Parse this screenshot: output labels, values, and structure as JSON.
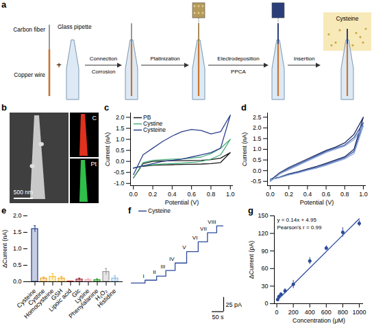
{
  "panel_a": {
    "letter": "a",
    "labels": {
      "carbon_fiber": "Carbon fiber",
      "copper_wire": "Copper wire",
      "plus": "+",
      "glass_pipette": "Glass pipette",
      "steps": [
        {
          "above": "Connection",
          "below": "Corrosion"
        },
        {
          "above": "Platinization"
        },
        {
          "above": "Electrodeposition",
          "below": "PPCA"
        },
        {
          "above": "Insertion"
        }
      ],
      "analyte": "Cysteine"
    }
  },
  "panel_b": {
    "letter": "b",
    "scale_bar": "500 nm",
    "maps": [
      "C",
      "Pt"
    ]
  },
  "chart_data": [
    {
      "panel": "c",
      "type": "line",
      "legend": "top-left",
      "x_label": "Potential (V)",
      "y_label": "Current (nA)",
      "x": [
        0,
        0.1,
        0.2,
        0.3,
        0.4,
        0.5,
        0.6,
        0.7,
        0.8,
        0.9,
        1,
        0.9,
        0.8,
        0.7,
        0.6,
        0.5,
        0.4,
        0.3,
        0.2,
        0.1,
        0
      ],
      "xlim": [
        -0.03,
        1.03
      ],
      "xticks": [
        {
          "value": 0,
          "label": "0.0"
        },
        0.2,
        0.4,
        0.6,
        0.8,
        {
          "value": 1,
          "label": "1.0"
        }
      ],
      "ylim": [
        -1.1,
        2.2
      ],
      "yticks": [
        {
          "value": -1,
          "label": "-1.0"
        },
        -0.5,
        {
          "value": 0,
          "label": "0.0"
        },
        0.5,
        {
          "value": 1,
          "label": "1.0"
        },
        1.5,
        {
          "value": 2,
          "label": "2.0"
        }
      ],
      "series": [
        {
          "name": "PB",
          "color": "#1a1a1a",
          "values": [
            -0.75,
            -0.1,
            0,
            0.02,
            0.03,
            0.03,
            0.04,
            0.05,
            0.08,
            0.15,
            0.4,
            -0.05,
            -0.1,
            -0.12,
            -0.13,
            -0.14,
            -0.15,
            -0.16,
            -0.18,
            -0.22,
            -0.3
          ]
        },
        {
          "name": "Cystine",
          "color": "#4caf7d",
          "values": [
            -0.75,
            -0.05,
            0.05,
            0.08,
            0.1,
            0.12,
            0.15,
            0.2,
            0.35,
            0.6,
            1.0,
            0.3,
            0.1,
            0,
            -0.05,
            -0.08,
            -0.1,
            -0.12,
            -0.15,
            -0.2,
            -0.3
          ]
        },
        {
          "name": "Cysteine",
          "color": "#2b3f8c",
          "values": [
            -0.6,
            0.3,
            0.6,
            0.9,
            1.15,
            1.35,
            1.45,
            1.4,
            1.25,
            1.35,
            2.1,
            0.6,
            0.4,
            0.3,
            0.2,
            0.1,
            0.05,
            0,
            -0.1,
            -0.2,
            -0.3
          ]
        }
      ]
    },
    {
      "panel": "d",
      "type": "line",
      "x_label": "Potential (V)",
      "y_label": "Current (nA)",
      "x": [
        0,
        0.1,
        0.2,
        0.3,
        0.4,
        0.5,
        0.6,
        0.7,
        0.8,
        0.9,
        1,
        0.9,
        0.8,
        0.7,
        0.6,
        0.5,
        0.4,
        0.3,
        0.2,
        0.1,
        0
      ],
      "xlim": [
        -0.03,
        1.03
      ],
      "xticks": [
        {
          "value": 0,
          "label": "0.0"
        },
        0.2,
        0.4,
        0.6,
        0.8,
        {
          "value": 1,
          "label": "1.0"
        }
      ],
      "ylim": [
        -0.7,
        2.7
      ],
      "yticks": [
        -0.5,
        {
          "value": 0,
          "label": "0.0"
        },
        0.5,
        {
          "value": 1,
          "label": "1.0"
        },
        1.5,
        {
          "value": 2,
          "label": "2.0"
        },
        2.5
      ],
      "series": [
        {
          "color": "#1c2a5e",
          "values": [
            -0.45,
            -0.1,
            0.15,
            0.35,
            0.55,
            0.75,
            0.95,
            1.1,
            1.3,
            1.7,
            2.5,
            1.0,
            0.65,
            0.5,
            0.35,
            0.2,
            0.08,
            -0.05,
            -0.15,
            -0.3,
            -0.4
          ]
        },
        {
          "color": "#3d5aa8",
          "values": [
            -0.5,
            -0.15,
            0.1,
            0.3,
            0.5,
            0.7,
            0.9,
            1.05,
            1.2,
            1.55,
            2.25,
            0.9,
            0.6,
            0.45,
            0.3,
            0.15,
            0.05,
            -0.08,
            -0.18,
            -0.32,
            -0.42
          ]
        },
        {
          "color": "#8aa6d8",
          "values": [
            -0.5,
            -0.15,
            0.05,
            0.25,
            0.45,
            0.65,
            0.85,
            1.0,
            1.15,
            1.45,
            2.1,
            0.8,
            0.55,
            0.4,
            0.25,
            0.12,
            0.02,
            -0.1,
            -0.2,
            -0.33,
            -0.42
          ]
        }
      ]
    },
    {
      "panel": "e",
      "type": "bar",
      "y_label": "ΔCurrent (nA)",
      "categories": [
        "Cysteine",
        "Cystine",
        "Homocysteine",
        "GSH",
        "Lipoic acid",
        "Glc",
        "Lysine",
        "Phenylalanine",
        "H₂O₂",
        "Histidine"
      ],
      "values": [
        1.6,
        0.1,
        0.15,
        0.1,
        0.01,
        0.07,
        0.05,
        0.05,
        0.3,
        0.1
      ],
      "errors": [
        0.1,
        0.04,
        0.1,
        0.06,
        0.01,
        0.04,
        0.04,
        0.04,
        0.1,
        0.08
      ],
      "colors": [
        "#1f3c88",
        "#f0a030",
        "#f2c230",
        "#f5a623",
        "#d62728",
        "#9b2335",
        "#f4a6b0",
        "#2ca02c",
        "#999999",
        "#8ab8e6"
      ],
      "ylim": [
        0,
        2
      ],
      "yticks": [
        {
          "value": 0,
          "label": "0.0"
        },
        0.5,
        {
          "value": 1,
          "label": "1.0"
        },
        1.5,
        {
          "value": 2,
          "label": "2.0"
        }
      ]
    },
    {
      "panel": "f",
      "type": "line",
      "tick_labels": false,
      "legend": "top-left",
      "line_style": "step",
      "x": [
        0,
        60,
        110,
        150,
        190,
        240,
        290,
        330,
        370,
        400
      ],
      "point_labels": [
        null,
        "I",
        "II",
        "III",
        "IV",
        "V",
        "VI",
        "VII",
        "VIII",
        null
      ],
      "series": [
        {
          "name": "Cysteine",
          "color": "#2b4a9b",
          "values": [
            0,
            5,
            12,
            22,
            35,
            55,
            72,
            88,
            100,
            100
          ]
        }
      ],
      "scale_bars": {
        "x": {
          "value": 50,
          "label": "50 s"
        },
        "y": {
          "value": 25,
          "label": "25 pA"
        }
      }
    },
    {
      "panel": "g",
      "type": "scatter",
      "color": "#2b4a9b",
      "x_label": "Concentration (μM)",
      "y_label": "ΔCurrent (pA)",
      "x": [
        10,
        25,
        50,
        100,
        200,
        400,
        600,
        800,
        1000
      ],
      "values": [
        7,
        12,
        16,
        22,
        33,
        73,
        95,
        122,
        137
      ],
      "errors": [
        3,
        3,
        3,
        4,
        7,
        6,
        4,
        8,
        5
      ],
      "fit": {
        "slope": 0.14,
        "intercept": 4.95
      },
      "annotations": [
        "y = 0.14x + 4.95",
        "Pearson's r = 0.99"
      ],
      "xlim": [
        -30,
        1050
      ],
      "xticks": [
        0,
        200,
        400,
        600,
        800,
        1000
      ],
      "ylim": [
        0,
        150
      ],
      "yticks": [
        0,
        30,
        60,
        90,
        120,
        150
      ]
    }
  ]
}
